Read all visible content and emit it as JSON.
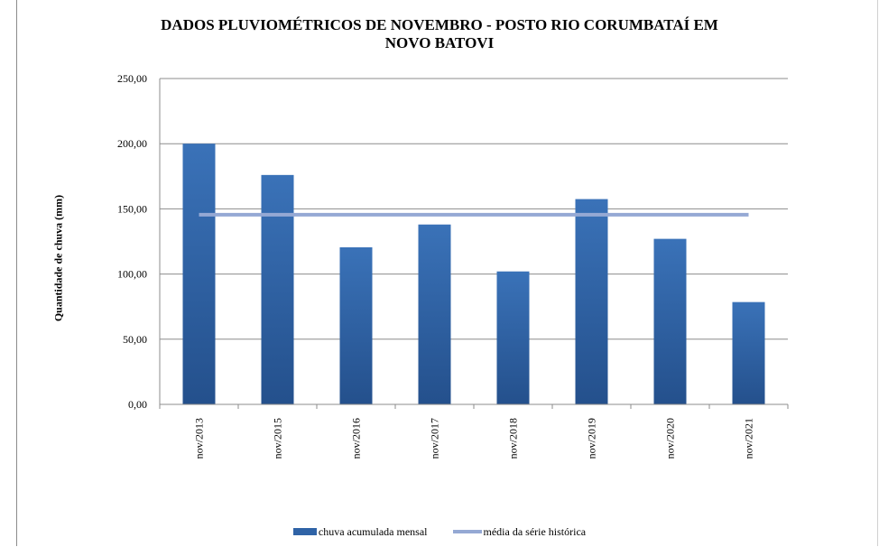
{
  "chart_data": {
    "type": "bar",
    "title_line1": "DADOS PLUVIOMÉTRICOS DE NOVEMBRO - POSTO RIO CORUMBATAÍ EM",
    "title_line2": "NOVO BATOVI",
    "xlabel": "",
    "ylabel": "Quantidade de chuva (mm)",
    "ylim": [
      0,
      250
    ],
    "yticks": [
      "0,00",
      "50,00",
      "100,00",
      "150,00",
      "200,00",
      "250,00"
    ],
    "ytick_values": [
      0,
      50,
      100,
      150,
      200,
      250
    ],
    "categories": [
      "nov/2013",
      "nov/2015",
      "nov/2016",
      "nov/2017",
      "nov/2018",
      "nov/2019",
      "nov/2020",
      "nov/2021"
    ],
    "series": [
      {
        "name": "chuva acumulada mensal",
        "type": "bar",
        "color": "#2f63a6",
        "values": [
          200.0,
          176.0,
          120.5,
          138.0,
          102.0,
          157.5,
          127.0,
          78.5
        ]
      },
      {
        "name": "média da série histórica",
        "type": "line",
        "color": "#95a9d4",
        "values": [
          145.5,
          145.5,
          145.5,
          145.5,
          145.5,
          145.5,
          145.5,
          145.5
        ]
      }
    ],
    "grid": true,
    "legend_position": "bottom"
  }
}
